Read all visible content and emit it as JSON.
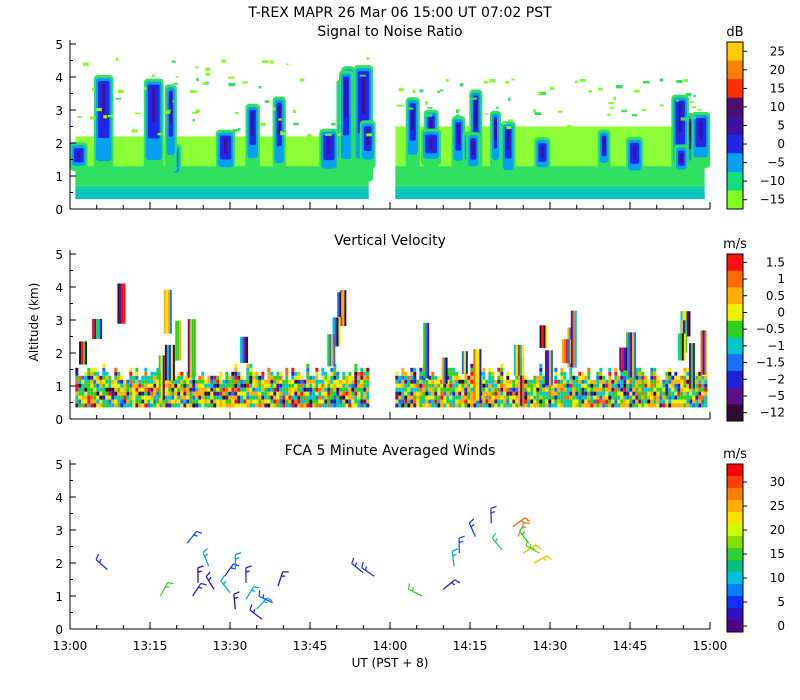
{
  "title": "T-REX   MAPR 26 Mar 06   15:00 UT   07:02   PST",
  "chart_data": [
    {
      "type": "heatmap",
      "title": "Signal to Noise Ratio",
      "ylabel": "",
      "xlabel": "",
      "xlim": [
        "13:00",
        "15:00"
      ],
      "ylim": [
        0,
        5
      ],
      "yticks": [
        0,
        1,
        2,
        3,
        4,
        5
      ],
      "colorbar": {
        "unit": "dB",
        "labels": [
          "25",
          "20",
          "15",
          "10",
          "5",
          "0",
          "−5",
          "−10",
          "−15"
        ],
        "colors": [
          "#ffcc00",
          "#ff8000",
          "#ff3000",
          "#4b0f6e",
          "#3c10a0",
          "#1e28e6",
          "#08a0f0",
          "#10e080",
          "#80ff20"
        ]
      },
      "segments": [
        {
          "x_start": "13:01",
          "x_end": "13:56",
          "y_bottom": 0.3,
          "y_top": 2.2,
          "max_top": 4.8
        },
        {
          "x_start": "14:01",
          "x_end": "14:59",
          "y_bottom": 0.3,
          "y_top": 2.5,
          "max_top": 4.0
        }
      ]
    },
    {
      "type": "heatmap",
      "title": "Vertical Velocity",
      "ylabel": "Altitude (km)",
      "xlabel": "",
      "xlim": [
        "13:00",
        "15:00"
      ],
      "ylim": [
        0,
        5
      ],
      "yticks": [
        0,
        1,
        2,
        3,
        4,
        5
      ],
      "colorbar": {
        "unit": "m/s",
        "labels": [
          "1.5",
          "1",
          "0.5",
          "0",
          "−0.5",
          "−1",
          "−1.5",
          "−2",
          "−5",
          "−12"
        ],
        "colors": [
          "#ff1010",
          "#ff6a00",
          "#ffb000",
          "#f0f000",
          "#30d020",
          "#00c8c8",
          "#1a70ff",
          "#2020d8",
          "#5a108c",
          "#320a32"
        ]
      }
    },
    {
      "type": "scatter",
      "title": "FCA 5 Minute Averaged Winds",
      "ylabel": "",
      "xlabel": "UT  (PST + 8)",
      "xlim": [
        "13:00",
        "15:00"
      ],
      "ylim": [
        0,
        5
      ],
      "yticks": [
        0,
        1,
        2,
        3,
        4,
        5
      ],
      "xticks": [
        "13:00",
        "13:15",
        "13:30",
        "13:45",
        "14:00",
        "14:15",
        "14:30",
        "14:45",
        "15:00"
      ],
      "colorbar": {
        "unit": "m/s",
        "labels": [
          "30",
          "25",
          "20",
          "15",
          "10",
          "5",
          "0"
        ],
        "colors": [
          "#ff0000",
          "#ff4000",
          "#ff8000",
          "#ffb000",
          "#ffe000",
          "#ccff00",
          "#80e000",
          "#30d030",
          "#00c080",
          "#00c0e0",
          "#0080ff",
          "#1030ff",
          "#3010c0",
          "#500080"
        ]
      },
      "barbs": [
        {
          "t": 7,
          "alt": 1.8,
          "color": "#2838e0"
        },
        {
          "t": 17,
          "alt": 1.0,
          "color": "#40c830"
        },
        {
          "t": 22,
          "alt": 2.6,
          "color": "#2050ff"
        },
        {
          "t": 23,
          "alt": 1.0,
          "color": "#3020c0"
        },
        {
          "t": 24,
          "alt": 1.4,
          "color": "#3010b0"
        },
        {
          "t": 26,
          "alt": 1.9,
          "color": "#00b0d0"
        },
        {
          "t": 27,
          "alt": 1.2,
          "color": "#3010c0"
        },
        {
          "t": 29,
          "alt": 1.6,
          "color": "#1838f0"
        },
        {
          "t": 30,
          "alt": 1.1,
          "color": "#00b0e0"
        },
        {
          "t": 31,
          "alt": 0.6,
          "color": "#3010b0"
        },
        {
          "t": 31,
          "alt": 1.8,
          "color": "#00a0e0"
        },
        {
          "t": 33,
          "alt": 1.4,
          "color": "#3020c0"
        },
        {
          "t": 33,
          "alt": 0.9,
          "color": "#00b0d0"
        },
        {
          "t": 35,
          "alt": 0.6,
          "color": "#00b0e0"
        },
        {
          "t": 36,
          "alt": 0.3,
          "color": "#3020c0"
        },
        {
          "t": 38,
          "alt": 0.8,
          "color": "#2050ff"
        },
        {
          "t": 39,
          "alt": 1.3,
          "color": "#3010b0"
        },
        {
          "t": 55,
          "alt": 1.7,
          "color": "#2030e0"
        },
        {
          "t": 57,
          "alt": 1.6,
          "color": "#2838f0"
        },
        {
          "t": 66,
          "alt": 1.0,
          "color": "#40c830"
        },
        {
          "t": 70,
          "alt": 1.2,
          "color": "#3020c0"
        },
        {
          "t": 72,
          "alt": 1.9,
          "color": "#00b0d0"
        },
        {
          "t": 73,
          "alt": 2.3,
          "color": "#2050ff"
        },
        {
          "t": 76,
          "alt": 2.8,
          "color": "#1838f0"
        },
        {
          "t": 79,
          "alt": 3.2,
          "color": "#3030e0"
        },
        {
          "t": 81,
          "alt": 2.4,
          "color": "#30c860"
        },
        {
          "t": 83,
          "alt": 3.1,
          "color": "#ff7000"
        },
        {
          "t": 84,
          "alt": 2.8,
          "color": "#ff8020"
        },
        {
          "t": 85,
          "alt": 2.3,
          "color": "#c0d000"
        },
        {
          "t": 86,
          "alt": 2.6,
          "color": "#30c830"
        },
        {
          "t": 87,
          "alt": 2.0,
          "color": "#e8c800"
        },
        {
          "t": 88,
          "alt": 2.3,
          "color": "#70d020"
        }
      ]
    }
  ]
}
